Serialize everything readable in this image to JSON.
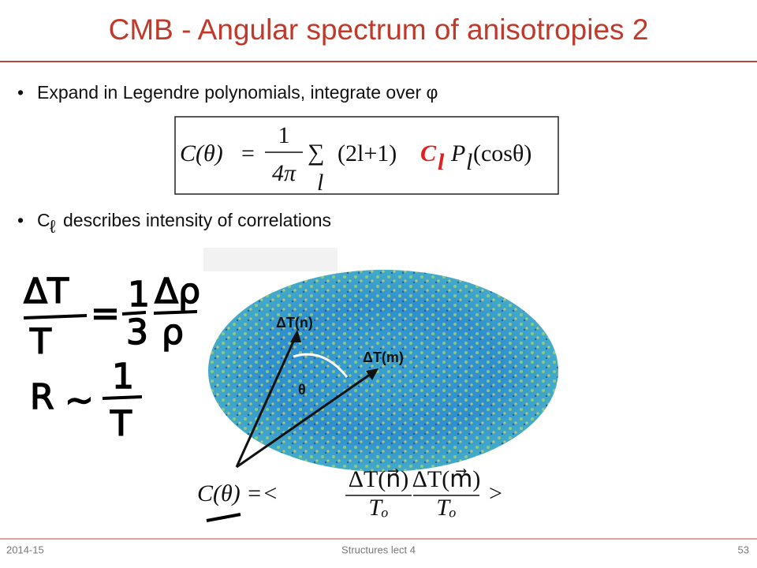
{
  "header": {
    "title": "CMB - Angular spectrum of anisotropies 2"
  },
  "bullets": [
    {
      "text": "Expand in Legendre polynomials, integrate over φ"
    },
    {
      "symbol": "C",
      "subscript": "ℓ",
      "text": "describes intensity of correlations"
    }
  ],
  "formula": {
    "lhs": "C(θ)",
    "equals": "=",
    "numerator": "1",
    "denominator": "4π",
    "sum": "∑",
    "sum_index": "l",
    "factor": "(2l+1)",
    "coefficient": "C",
    "coefficient_index": "l",
    "polynomial": "P",
    "polynomial_index": "l",
    "argument": "(cosθ)"
  },
  "handwritten": {
    "dT": "ΔT",
    "T": "T",
    "eq": "=",
    "one": "1",
    "three": "3",
    "drho": "Δρ",
    "rho": "ρ",
    "R": "R",
    "sim": "~",
    "one2": "1",
    "T2": "T"
  },
  "map": {
    "label_n": "ΔT(n)",
    "label_m": "ΔT(m)",
    "angle": "θ"
  },
  "correlation": {
    "lhs": "C(θ) =<",
    "num1": "ΔT(n⃗)",
    "den1": "Tₒ",
    "num2": "ΔT(m⃗)",
    "den2": "Tₒ",
    "close": ">"
  },
  "footer": {
    "date": "2014-15",
    "course": "Structures lect 4",
    "page": "53"
  }
}
